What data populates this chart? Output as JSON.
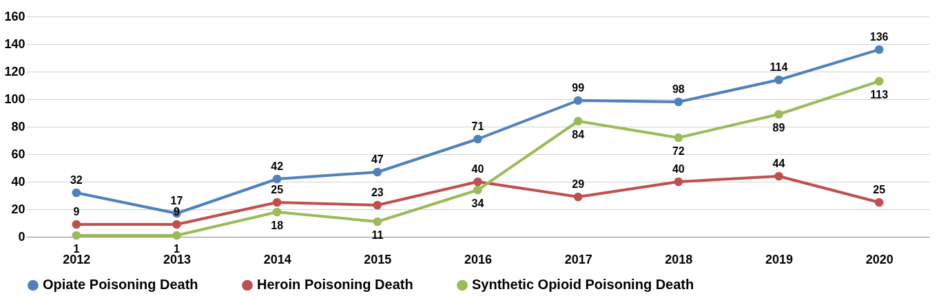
{
  "chart_data": {
    "type": "line",
    "categories": [
      "2012",
      "2013",
      "2014",
      "2015",
      "2016",
      "2017",
      "2018",
      "2019",
      "2020"
    ],
    "series": [
      {
        "name": "Opiate Poisoning Death",
        "color": "#4f81bd",
        "values": [
          32,
          17,
          42,
          47,
          71,
          99,
          98,
          114,
          136
        ]
      },
      {
        "name": "Heroin Poisoning Death",
        "color": "#c0504d",
        "values": [
          9,
          9,
          25,
          23,
          40,
          29,
          40,
          44,
          25
        ]
      },
      {
        "name": "Synthetic Opioid Poisoning Death",
        "color": "#9bbb59",
        "values": [
          1,
          1,
          18,
          11,
          34,
          84,
          72,
          89,
          113
        ]
      }
    ],
    "ylim": [
      0,
      160
    ],
    "yticks": [
      0,
      20,
      40,
      60,
      80,
      100,
      120,
      140,
      160
    ],
    "grid": "y",
    "legend": "bottom",
    "marker": "circle",
    "line_style": "solid",
    "data_labels": true
  }
}
